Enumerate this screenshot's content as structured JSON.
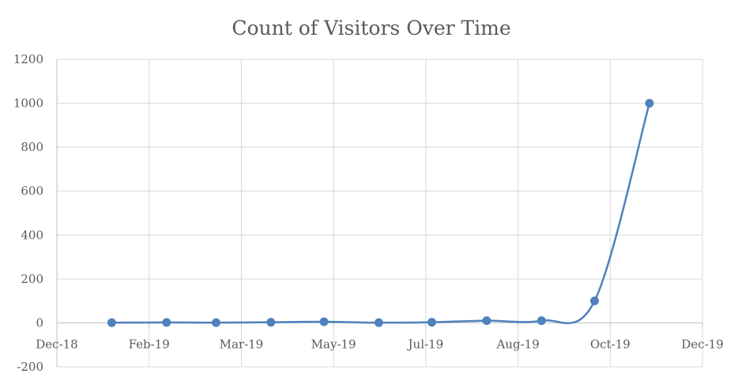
{
  "chart_data": {
    "type": "line",
    "title": "Count of Visitors Over Time",
    "xlabel": "",
    "ylabel": "",
    "x_ticks": [
      "Dec-18",
      "Feb-19",
      "Mar-19",
      "May-19",
      "Jul-19",
      "Aug-19",
      "Oct-19",
      "Dec-19"
    ],
    "y_ticks": [
      -200,
      0,
      200,
      400,
      600,
      800,
      1000,
      1200
    ],
    "xlim": [
      "2018-12-01",
      "2019-12-01"
    ],
    "ylim": [
      -200,
      1200
    ],
    "grid": true,
    "legend": "none",
    "smooth": true,
    "color": "#4f81bd",
    "series": [
      {
        "x": [
          "2019-01-01",
          "2019-02-01",
          "2019-03-01",
          "2019-04-01",
          "2019-05-01",
          "2019-06-01",
          "2019-07-01",
          "2019-08-01",
          "2019-09-01",
          "2019-10-01",
          "2019-11-01"
        ],
        "values": [
          1,
          2,
          1,
          3,
          5,
          1,
          3,
          10,
          10,
          100,
          1000
        ]
      }
    ]
  }
}
